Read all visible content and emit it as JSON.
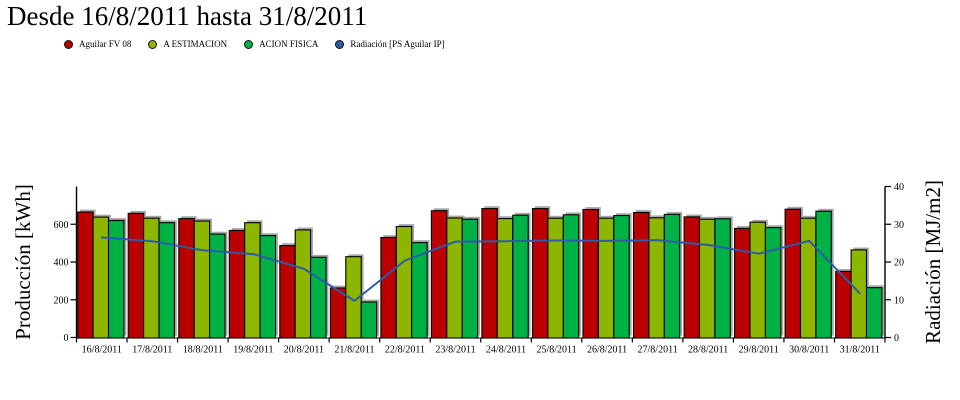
{
  "header": {
    "title": "Desde 16/8/2011 hasta 31/8/2011"
  },
  "chart_data": {
    "type": "bar",
    "title": "Desde 16/8/2011 hasta 31/8/2011",
    "categories": [
      "16/8/2011",
      "17/8/2011",
      "18/8/2011",
      "19/8/2011",
      "20/8/2011",
      "21/8/2011",
      "22/8/2011",
      "23/8/2011",
      "24/8/2011",
      "25/8/2011",
      "26/8/2011",
      "27/8/2011",
      "28/8/2011",
      "29/8/2011",
      "30/8/2011",
      "31/8/2011"
    ],
    "series": [
      {
        "name": "Aguilar FV 08",
        "type": "bar",
        "axis": "left",
        "color": "#bb0000",
        "values": [
          665,
          658,
          630,
          567,
          487,
          262,
          530,
          672,
          683,
          683,
          678,
          662,
          639,
          578,
          680,
          350
        ]
      },
      {
        "name": "A ESTIMACION",
        "type": "bar",
        "axis": "left",
        "color": "#8db600",
        "values": [
          638,
          632,
          617,
          608,
          570,
          428,
          588,
          633,
          630,
          632,
          632,
          634,
          627,
          611,
          632,
          464
        ]
      },
      {
        "name": "ACION FISICA",
        "type": "bar",
        "axis": "left",
        "color": "#00b246",
        "values": [
          620,
          608,
          548,
          540,
          425,
          188,
          503,
          627,
          648,
          650,
          646,
          652,
          629,
          582,
          669,
          264
        ]
      },
      {
        "name": "Radiación [PS Aguilar IP]",
        "type": "line",
        "axis": "right",
        "color": "#2b5ba9",
        "values": [
          26.5,
          25.5,
          23.1,
          22.1,
          18.2,
          9.7,
          20.4,
          25.4,
          25.5,
          25.7,
          25.6,
          25.8,
          24.5,
          22.2,
          25.6,
          11.7
        ]
      }
    ],
    "left_axis": {
      "label": "Producción [kWh]",
      "ticks": [
        0,
        200,
        400,
        600
      ],
      "range": [
        0,
        800
      ]
    },
    "right_axis": {
      "label": "Radiación [MJ/m2]",
      "ticks": [
        0,
        10,
        20,
        30,
        40
      ],
      "range": [
        0,
        40
      ]
    },
    "grid": false,
    "legend_position": "top-left",
    "background": "#ffffff"
  }
}
